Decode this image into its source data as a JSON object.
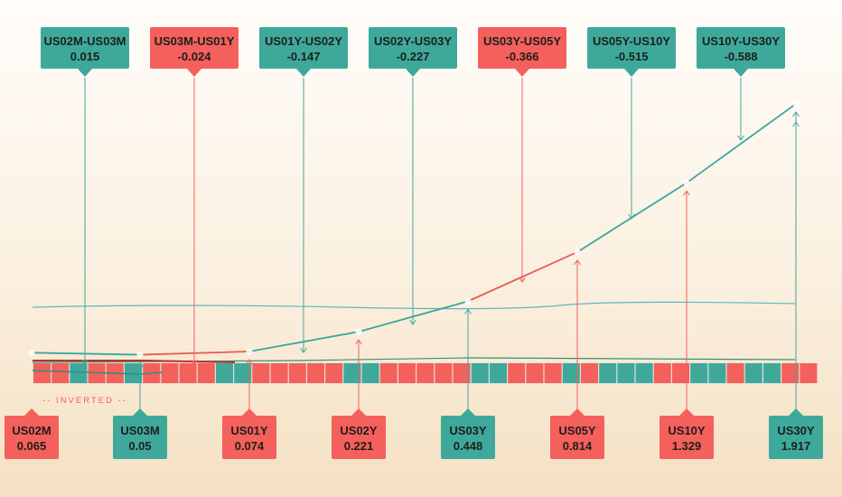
{
  "chart_data": {
    "type": "line",
    "title": "",
    "xlabel": "",
    "ylabel": "",
    "maturities": [
      {
        "label": "US02M",
        "value": "0.065",
        "y": 0.065
      },
      {
        "label": "US03M",
        "value": "0.05",
        "y": 0.05
      },
      {
        "label": "US01Y",
        "value": "0.074",
        "y": 0.074
      },
      {
        "label": "US02Y",
        "value": "0.221",
        "y": 0.221
      },
      {
        "label": "US03Y",
        "value": "0.448",
        "y": 0.448
      },
      {
        "label": "US05Y",
        "value": "0.814",
        "y": 0.814
      },
      {
        "label": "US10Y",
        "value": "1.329",
        "y": 1.329
      },
      {
        "label": "US30Y",
        "value": "1.917",
        "y": 1.917
      }
    ],
    "spreads": [
      {
        "label": "US02M-US03M",
        "value": "0.015",
        "positive": true
      },
      {
        "label": "US03M-US01Y",
        "value": "-0.024",
        "positive": false
      },
      {
        "label": "US01Y-US02Y",
        "value": "-0.147",
        "positive": true
      },
      {
        "label": "US02Y-US03Y",
        "value": "-0.227",
        "positive": true
      },
      {
        "label": "US03Y-US05Y",
        "value": "-0.366",
        "positive": false
      },
      {
        "label": "US05Y-US10Y",
        "value": "-0.515",
        "positive": true
      },
      {
        "label": "US10Y-US30Y",
        "value": "-0.588",
        "positive": true
      }
    ],
    "inverted_label": "-- INVERTED --",
    "colors": {
      "positive": "#3ea99a",
      "negative": "#f4605b",
      "teal_line": "#3aa6a0",
      "red_line": "#e85a52",
      "text": "#1e1e1e"
    }
  }
}
